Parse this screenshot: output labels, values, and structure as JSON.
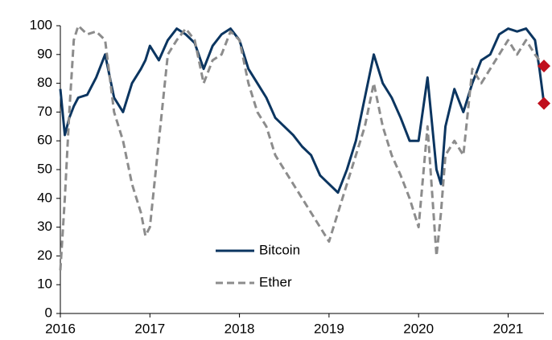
{
  "chart_data": {
    "type": "line",
    "x": [
      2016.0,
      2016.05,
      2016.1,
      2016.15,
      2016.2,
      2016.3,
      2016.4,
      2016.5,
      2016.6,
      2016.7,
      2016.8,
      2016.9,
      2016.95,
      2017.0,
      2017.1,
      2017.2,
      2017.3,
      2017.4,
      2017.5,
      2017.6,
      2017.7,
      2017.8,
      2017.9,
      2018.0,
      2018.1,
      2018.2,
      2018.3,
      2018.4,
      2018.5,
      2018.6,
      2018.7,
      2018.8,
      2018.9,
      2019.0,
      2019.1,
      2019.2,
      2019.3,
      2019.4,
      2019.5,
      2019.6,
      2019.7,
      2019.8,
      2019.9,
      2020.0,
      2020.1,
      2020.2,
      2020.25,
      2020.3,
      2020.4,
      2020.5,
      2020.6,
      2020.7,
      2020.8,
      2020.9,
      2021.0,
      2021.1,
      2021.2,
      2021.3,
      2021.35,
      2021.4
    ],
    "series": [
      {
        "name": "Bitcoin",
        "color": "#0b3560",
        "dash": "solid",
        "values": [
          78,
          62,
          68,
          72,
          75,
          76,
          82,
          90,
          75,
          70,
          80,
          85,
          88,
          93,
          88,
          95,
          99,
          97,
          94,
          85,
          93,
          97,
          99,
          95,
          85,
          80,
          75,
          68,
          65,
          62,
          58,
          55,
          48,
          45,
          42,
          50,
          60,
          75,
          90,
          80,
          75,
          68,
          60,
          60,
          82,
          50,
          45,
          65,
          78,
          70,
          80,
          88,
          90,
          97,
          99,
          98,
          99,
          95,
          85,
          73
        ]
      },
      {
        "name": "Ether",
        "color": "#8c8c8c",
        "dash": "dashed",
        "values": [
          15,
          40,
          70,
          95,
          100,
          97,
          98,
          95,
          70,
          60,
          45,
          35,
          27,
          30,
          60,
          90,
          95,
          99,
          95,
          80,
          88,
          90,
          98,
          95,
          80,
          70,
          65,
          55,
          50,
          45,
          40,
          35,
          30,
          25,
          35,
          45,
          55,
          65,
          80,
          65,
          55,
          48,
          40,
          30,
          65,
          20,
          35,
          55,
          60,
          55,
          85,
          80,
          85,
          90,
          95,
          90,
          95,
          90,
          88,
          86
        ]
      }
    ],
    "xlim": [
      2016,
      2021.4
    ],
    "xticks": [
      2016,
      2017,
      2018,
      2019,
      2020,
      2021
    ],
    "ylim": [
      0,
      100
    ],
    "yticks": [
      0,
      10,
      20,
      30,
      40,
      50,
      60,
      70,
      80,
      90,
      100
    ],
    "legend": "center",
    "end_marker_color": "#c0101e"
  }
}
